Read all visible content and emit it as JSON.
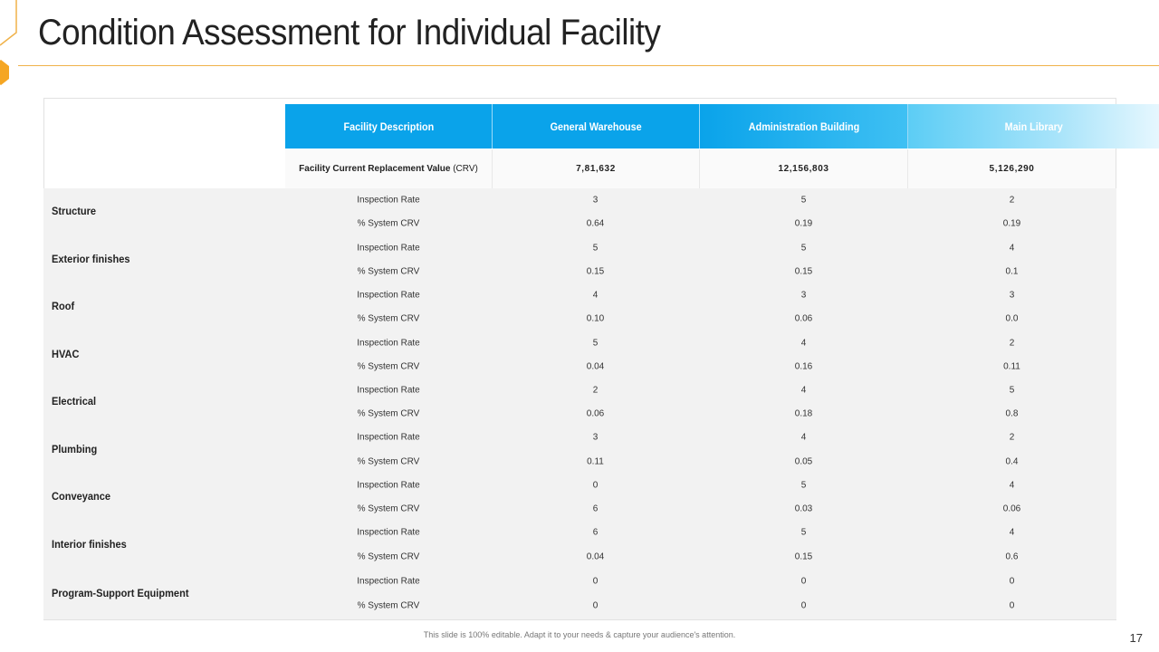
{
  "title": "Condition Assessment for Individual Facility",
  "header": {
    "description_label": "Facility Description",
    "columns": [
      "General Warehouse",
      "Administration Building",
      "Main Library"
    ]
  },
  "crv": {
    "label_bold": "Facility Current Replacement Value",
    "label_suffix": " (CRV)",
    "values": [
      "7,81,632",
      "12,156,803",
      "5,126,290"
    ]
  },
  "metric_labels": {
    "rate": "Inspection Rate",
    "crv": "% System CRV"
  },
  "rows": [
    {
      "name": "Structure",
      "rate": [
        "3",
        "5",
        "2"
      ],
      "crv": [
        "0.64",
        "0.19",
        "0.19"
      ]
    },
    {
      "name": "Exterior finishes",
      "rate": [
        "5",
        "5",
        "4"
      ],
      "crv": [
        "0.15",
        "0.15",
        "0.1"
      ]
    },
    {
      "name": "Roof",
      "rate": [
        "4",
        "3",
        "3"
      ],
      "crv": [
        "0.10",
        "0.06",
        "0.0"
      ]
    },
    {
      "name": "HVAC",
      "rate": [
        "5",
        "4",
        "2"
      ],
      "crv": [
        "0.04",
        "0.16",
        "0.11"
      ]
    },
    {
      "name": "Electrical",
      "rate": [
        "2",
        "4",
        "5"
      ],
      "crv": [
        "0.06",
        "0.18",
        "0.8"
      ]
    },
    {
      "name": "Plumbing",
      "rate": [
        "3",
        "4",
        "2"
      ],
      "crv": [
        "0.11",
        "0.05",
        "0.4"
      ]
    },
    {
      "name": "Conveyance",
      "rate": [
        "0",
        "5",
        "4"
      ],
      "crv": [
        "6",
        "0.03",
        "0.06"
      ]
    },
    {
      "name": "Interior finishes",
      "rate": [
        "6",
        "5",
        "4"
      ],
      "crv": [
        "0.04",
        "0.15",
        "0.6"
      ]
    },
    {
      "name": "Program-Support Equipment",
      "rate": [
        "0",
        "0",
        "0"
      ],
      "crv": [
        "0",
        "0",
        "0"
      ]
    }
  ],
  "footer_text": "This slide is 100% editable. Adapt it to your needs & capture your audience's attention.",
  "page_number": "17",
  "colors": {
    "accent": "#f5a623",
    "header_blue": "#0ea5e9"
  }
}
